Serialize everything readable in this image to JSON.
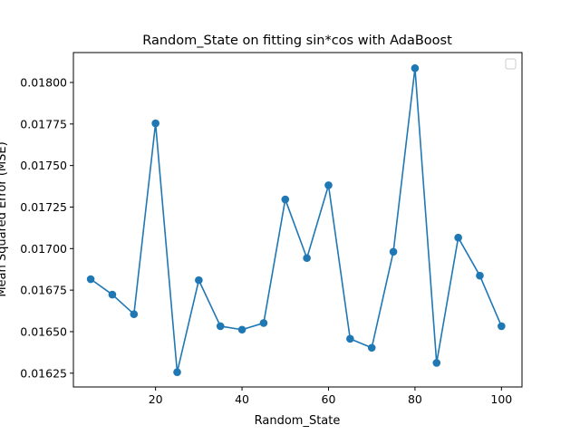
{
  "chart_data": {
    "type": "line",
    "title": "Random_State on fitting sin*cos with AdaBoost",
    "xlabel": "Random_State",
    "ylabel": "Mean Squared Error (MSE)",
    "xlim": [
      1,
      104.75
    ],
    "ylim": [
      0.016167,
      0.01818
    ],
    "xticks": [
      20,
      40,
      60,
      80,
      100
    ],
    "xtick_labels": [
      "20",
      "40",
      "60",
      "80",
      "100"
    ],
    "yticks": [
      0.01625,
      0.0165,
      0.01675,
      0.017,
      0.01725,
      0.0175,
      0.01775,
      0.018
    ],
    "ytick_labels": [
      "0.01625",
      "0.01650",
      "0.01675",
      "0.01700",
      "0.01725",
      "0.01750",
      "0.01775",
      "0.01800"
    ],
    "grid": false,
    "legend": "top-right (empty)",
    "series": [
      {
        "color": "#1f77b4",
        "marker": "circle",
        "x": [
          5,
          10,
          15,
          20,
          25,
          30,
          35,
          40,
          45,
          50,
          55,
          60,
          65,
          70,
          75,
          80,
          85,
          90,
          95,
          100
        ],
        "y": [
          0.016816,
          0.016723,
          0.016605,
          0.017754,
          0.016256,
          0.01681,
          0.016533,
          0.016512,
          0.016552,
          0.017296,
          0.016943,
          0.017381,
          0.016457,
          0.016403,
          0.016981,
          0.018086,
          0.016312,
          0.017066,
          0.016837,
          0.016533
        ]
      }
    ]
  }
}
